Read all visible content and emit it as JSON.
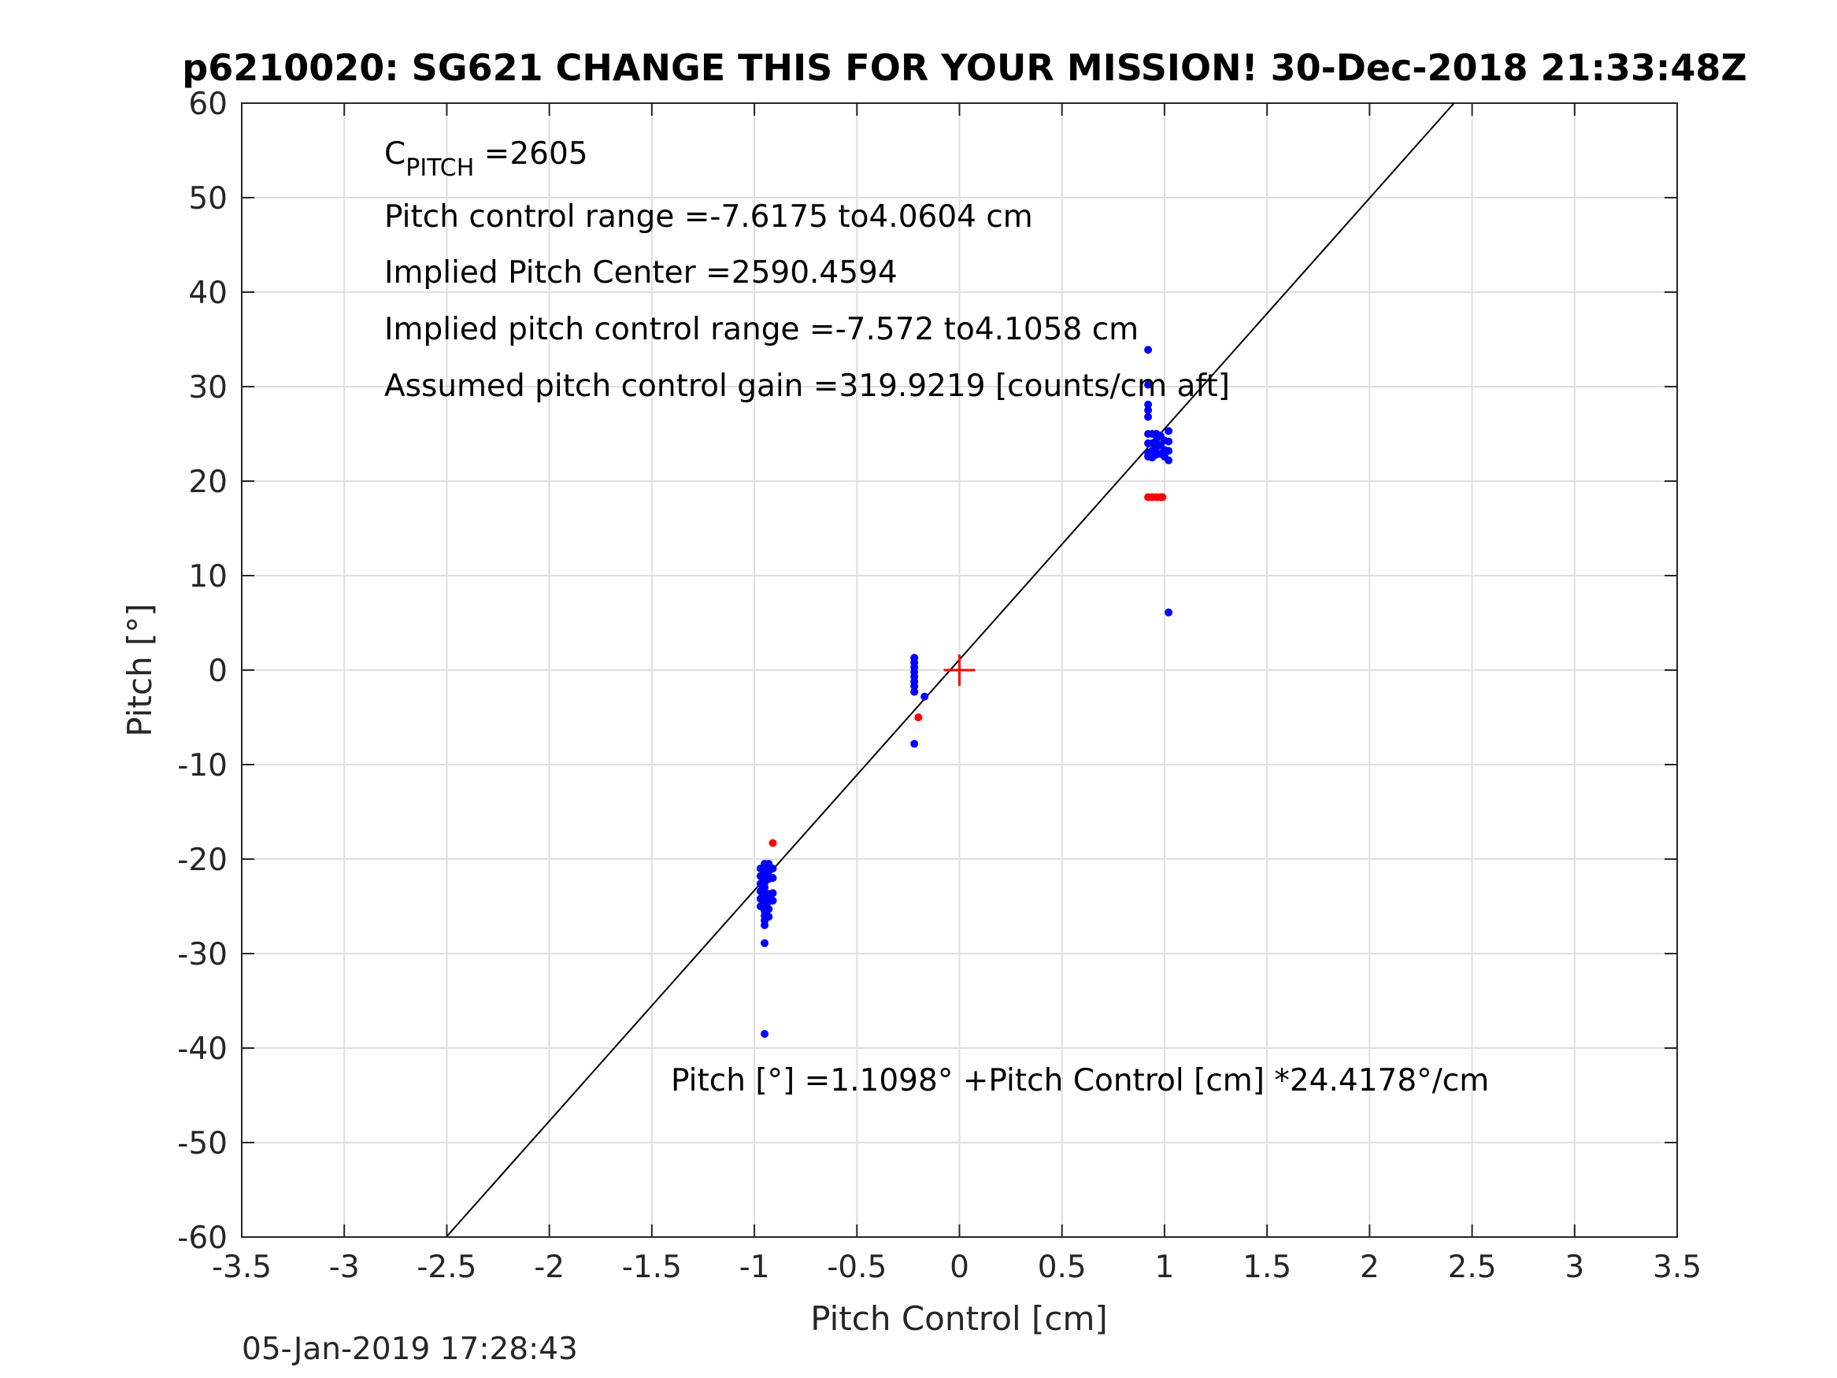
{
  "chart_data": {
    "type": "scatter",
    "title": "p6210020: SG621 CHANGE THIS FOR YOUR MISSION! 30-Dec-2018 21:33:48Z",
    "xlabel": "Pitch Control [cm]",
    "ylabel": "Pitch [°]",
    "xlim": [
      -3.5,
      3.5
    ],
    "ylim": [
      -60,
      60
    ],
    "xticks": [
      -3.5,
      -3,
      -2.5,
      -2,
      -1.5,
      -1,
      -0.5,
      0,
      0.5,
      1,
      1.5,
      2,
      2.5,
      3,
      3.5
    ],
    "xtick_labels": [
      "-3.5",
      "-3",
      "-2.5",
      "-2",
      "-1.5",
      "-1",
      "-0.5",
      "0",
      "0.5",
      "1",
      "1.5",
      "2",
      "2.5",
      "3",
      "3.5"
    ],
    "yticks": [
      -60,
      -50,
      -40,
      -30,
      -20,
      -10,
      0,
      10,
      20,
      30,
      40,
      50,
      60
    ],
    "ytick_labels": [
      "-60",
      "-50",
      "-40",
      "-30",
      "-20",
      "-10",
      "0",
      "10",
      "20",
      "30",
      "40",
      "50",
      "60"
    ],
    "grid": true,
    "fit_line": {
      "intercept": 1.1098,
      "slope": 24.4178,
      "x_range": [
        -3.5,
        3.5
      ],
      "color": "#000000"
    },
    "center_marker": {
      "x": 0,
      "y": 0,
      "color": "#ff0000",
      "shape": "plus"
    },
    "series": [
      {
        "color": "#0000ff",
        "points": [
          [
            -0.95,
            -20.5
          ],
          [
            -0.95,
            -21.0
          ],
          [
            -0.95,
            -21.5
          ],
          [
            -0.95,
            -22.0
          ],
          [
            -0.95,
            -22.5
          ],
          [
            -0.95,
            -23.0
          ],
          [
            -0.95,
            -23.5
          ],
          [
            -0.95,
            -24.0
          ],
          [
            -0.95,
            -24.5
          ],
          [
            -0.95,
            -25.0
          ],
          [
            -0.95,
            -25.5
          ],
          [
            -0.95,
            -26.0
          ],
          [
            -0.95,
            -26.5
          ],
          [
            -0.95,
            -27.0
          ],
          [
            -0.95,
            -28.9
          ],
          [
            -0.95,
            -38.5
          ],
          [
            -0.97,
            -21.0
          ],
          [
            -0.97,
            -21.8
          ],
          [
            -0.97,
            -22.6
          ],
          [
            -0.97,
            -23.4
          ],
          [
            -0.97,
            -24.2
          ],
          [
            -0.97,
            -25.0
          ],
          [
            -0.93,
            -20.5
          ],
          [
            -0.93,
            -21.3
          ],
          [
            -0.93,
            -22.1
          ],
          [
            -0.93,
            -23.7
          ],
          [
            -0.93,
            -24.5
          ],
          [
            -0.93,
            -25.3
          ],
          [
            -0.93,
            -26.1
          ],
          [
            -0.91,
            -21.0
          ],
          [
            -0.91,
            -22.0
          ],
          [
            -0.91,
            -23.6
          ],
          [
            -0.91,
            -24.4
          ],
          [
            -0.22,
            1.3
          ],
          [
            -0.22,
            0.8
          ],
          [
            -0.22,
            0.3
          ],
          [
            -0.22,
            -0.2
          ],
          [
            -0.22,
            -0.7
          ],
          [
            -0.22,
            -1.2
          ],
          [
            -0.22,
            -1.7
          ],
          [
            -0.22,
            -2.3
          ],
          [
            -0.22,
            -7.8
          ],
          [
            -0.17,
            -2.8
          ],
          [
            0.92,
            33.9
          ],
          [
            0.92,
            30.2
          ],
          [
            0.92,
            28.1
          ],
          [
            0.92,
            27.5
          ],
          [
            0.92,
            26.8
          ],
          [
            0.92,
            25.0
          ],
          [
            0.92,
            24.0
          ],
          [
            0.92,
            23.0
          ],
          [
            0.92,
            22.6
          ],
          [
            0.94,
            25.0
          ],
          [
            0.94,
            24.0
          ],
          [
            0.94,
            23.2
          ],
          [
            0.94,
            22.5
          ],
          [
            0.96,
            25.0
          ],
          [
            0.96,
            24.3
          ],
          [
            0.96,
            23.6
          ],
          [
            0.96,
            22.8
          ],
          [
            0.98,
            24.8
          ],
          [
            0.98,
            23.8
          ],
          [
            0.98,
            22.9
          ],
          [
            1.0,
            24.3
          ],
          [
            1.0,
            23.3
          ],
          [
            1.0,
            22.6
          ],
          [
            1.02,
            25.3
          ],
          [
            1.02,
            24.2
          ],
          [
            1.02,
            23.2
          ],
          [
            1.02,
            22.2
          ],
          [
            1.02,
            6.1
          ]
        ]
      },
      {
        "color": "#ff0000",
        "points": [
          [
            -0.91,
            -18.3
          ],
          [
            -0.2,
            -5.0
          ],
          [
            0.92,
            18.3
          ],
          [
            0.94,
            18.3
          ],
          [
            0.96,
            18.3
          ],
          [
            0.98,
            18.3
          ],
          [
            0.99,
            18.3
          ]
        ]
      }
    ],
    "annotations": {
      "c_pitch_prefix": "C",
      "c_pitch_subscript": "PITCH",
      "c_pitch_value": " =2605",
      "pitch_control_range": "Pitch control range =-7.6175 to4.0604 cm",
      "implied_pitch_center": "Implied Pitch Center =2590.4594",
      "implied_pitch_control_range": "Implied pitch control range =-7.572 to4.1058 cm",
      "assumed_gain": "Assumed pitch control gain =319.9219 [counts/cm aft]",
      "fit_equation": "Pitch [°] =1.1098° +Pitch Control [cm] *24.4178°/cm"
    },
    "footer_timestamp": "05-Jan-2019 17:28:43"
  }
}
